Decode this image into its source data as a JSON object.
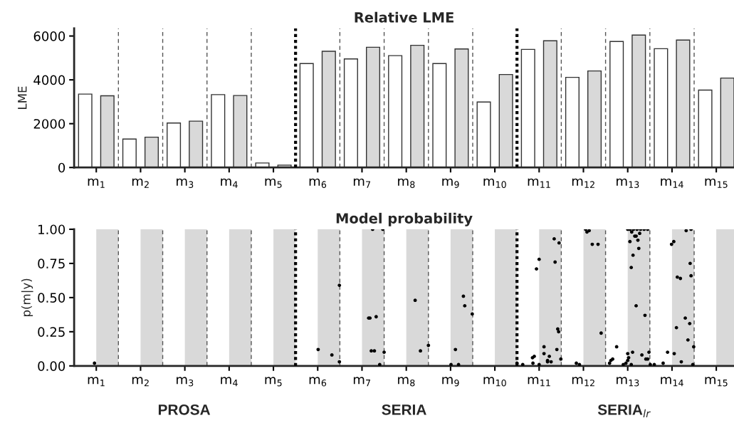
{
  "chart_data": [
    {
      "type": "bar",
      "title": "Relative LME",
      "ylabel": "LME",
      "x": [
        1,
        2,
        3,
        4,
        5,
        6,
        7,
        8,
        9,
        10,
        11,
        12,
        13,
        14,
        15
      ],
      "xlim": [
        0.5,
        15.4
      ],
      "xticks": [
        {
          "value": 1,
          "label": "m$_{1}$"
        },
        {
          "value": 2,
          "label": "m$_{2}$"
        },
        {
          "value": 3,
          "label": "m$_{3}$"
        },
        {
          "value": 4,
          "label": "m$_{4}$"
        },
        {
          "value": 5,
          "label": "m$_{5}$"
        },
        {
          "value": 6,
          "label": "m$_{6}$"
        },
        {
          "value": 7,
          "label": "m$_{7}$"
        },
        {
          "value": 8,
          "label": "m$_{8}$"
        },
        {
          "value": 9,
          "label": "m$_{9}$"
        },
        {
          "value": 10,
          "label": "m$_{10}$"
        },
        {
          "value": 11,
          "label": "m$_{11}$"
        },
        {
          "value": 12,
          "label": "m$_{12}$"
        },
        {
          "value": 13,
          "label": "m$_{13}$"
        },
        {
          "value": 14,
          "label": "m$_{14}$"
        },
        {
          "value": 15,
          "label": "m$_{15}$"
        }
      ],
      "ylim": [
        0,
        6350
      ],
      "yticks": [
        0,
        2000,
        4000,
        6000
      ],
      "grid": false,
      "series": [
        {
          "color": "#ffffff",
          "values": [
            3349,
            1298,
            2029,
            3327,
            207,
            4745,
            4953,
            5105,
            4745,
            2989,
            5389,
            4113,
            5749,
            5422,
            3535
          ]
        },
        {
          "color": "#d9d9d9",
          "values": [
            3273,
            1385,
            2116,
            3284,
            109,
            5302,
            5487,
            5575,
            5411,
            4244,
            5782,
            4407,
            6044,
            5815,
            4080
          ]
        }
      ],
      "ref_lines": [
        {
          "axis": "x",
          "value": 1.5,
          "line_style": "dashed",
          "color": "#555555"
        },
        {
          "axis": "x",
          "value": 2.5,
          "line_style": "dashed",
          "color": "#555555"
        },
        {
          "axis": "x",
          "value": 3.5,
          "line_style": "dashed",
          "color": "#555555"
        },
        {
          "axis": "x",
          "value": 4.5,
          "line_style": "dashed",
          "color": "#555555"
        },
        {
          "axis": "x",
          "value": 5.5,
          "line_style": "dotted",
          "color": "#000000"
        },
        {
          "axis": "x",
          "value": 6.5,
          "line_style": "dashed",
          "color": "#555555"
        },
        {
          "axis": "x",
          "value": 7.5,
          "line_style": "dashed",
          "color": "#555555"
        },
        {
          "axis": "x",
          "value": 8.5,
          "line_style": "dashed",
          "color": "#555555"
        },
        {
          "axis": "x",
          "value": 9.5,
          "line_style": "dashed",
          "color": "#555555"
        },
        {
          "axis": "x",
          "value": 10.5,
          "line_style": "dotted",
          "color": "#000000"
        },
        {
          "axis": "x",
          "value": 11.5,
          "line_style": "dashed",
          "color": "#555555"
        },
        {
          "axis": "x",
          "value": 12.5,
          "line_style": "dashed",
          "color": "#555555"
        },
        {
          "axis": "x",
          "value": 13.5,
          "line_style": "dashed",
          "color": "#555555"
        },
        {
          "axis": "x",
          "value": 14.5,
          "line_style": "dashed",
          "color": "#555555"
        }
      ]
    },
    {
      "type": "scatter",
      "title": "Model probability",
      "ylabel": "p(m|y)",
      "marker": "circle",
      "grid": false,
      "xlim": [
        0.5,
        15.4
      ],
      "xticks": [
        {
          "value": 1,
          "label": "m$_{1}$"
        },
        {
          "value": 2,
          "label": "m$_{2}$"
        },
        {
          "value": 3,
          "label": "m$_{3}$"
        },
        {
          "value": 4,
          "label": "m$_{4}$"
        },
        {
          "value": 5,
          "label": "m$_{5}$"
        },
        {
          "value": 6,
          "label": "m$_{6}$"
        },
        {
          "value": 7,
          "label": "m$_{7}$"
        },
        {
          "value": 8,
          "label": "m$_{8}$"
        },
        {
          "value": 9,
          "label": "m$_{9}$"
        },
        {
          "value": 10,
          "label": "m$_{10}$"
        },
        {
          "value": 11,
          "label": "m$_{11}$"
        },
        {
          "value": 12,
          "label": "m$_{12}$"
        },
        {
          "value": 13,
          "label": "m$_{13}$"
        },
        {
          "value": 14,
          "label": "m$_{14}$"
        },
        {
          "value": 15,
          "label": "m$_{15}$"
        }
      ],
      "ylim": [
        0,
        1
      ],
      "yticks": [
        {
          "value": 0,
          "label": "0.00"
        },
        {
          "value": 0.25,
          "label": "0.25"
        },
        {
          "value": 0.5,
          "label": "0.50"
        },
        {
          "value": 0.75,
          "label": "0.75"
        },
        {
          "value": 1,
          "label": "1.00"
        }
      ],
      "series": [
        {
          "color": "#000000",
          "x": [
            0.96,
            6.01,
            6.32,
            6.49,
            6.49,
            7.15,
            7.24,
            7.47,
            7.18,
            7.32,
            7.21,
            7.28,
            7.5,
            7.4,
            8.2,
            8.32,
            8.5,
            9.11,
            9.01,
            9.18,
            9.29,
            9.32,
            9.49,
            10.5,
            10.63,
            10.85,
            10.89,
            10.86,
            11.0,
            10.94,
            11.0,
            11.11,
            11.11,
            11.19,
            11.19,
            11.23,
            11.27,
            11.34,
            11.36,
            11.4,
            11.42,
            11.44,
            11.45,
            11.49,
            11.84,
            11.91,
            12.05,
            12.08,
            12.13,
            12.2,
            12.33,
            12.4,
            12.59,
            12.62,
            12.66,
            12.75,
            12.9,
            12.96,
            13.0,
            13.02,
            13.0,
            13.08,
            13.11,
            13.0,
            13.05,
            13.13,
            13.21,
            13.29,
            13.37,
            13.45,
            13.09,
            13.16,
            13.19,
            13.27,
            13.05,
            13.23,
            13.25,
            13.12,
            13.08,
            13.19,
            13.39,
            13.32,
            13.41,
            13.45,
            13.48,
            13.51,
            13.6,
            13.8,
            13.9,
            14.05,
            13.99,
            14.04,
            14.1,
            14.12,
            14.19,
            14.21,
            14.3,
            14.32,
            14.43,
            14.4,
            14.41,
            14.36,
            14.43,
            14.49,
            14.47
          ],
          "values": [
            0.02,
            0.12,
            0.08,
            0.59,
            0.03,
            0.35,
            1.0,
            1.0,
            0.35,
            0.36,
            0.11,
            0.11,
            0.1,
            0.01,
            0.48,
            0.11,
            0.15,
            0.12,
            0.01,
            0.01,
            0.51,
            0.44,
            0.38,
            0.02,
            0.01,
            0.06,
            0.07,
            0.02,
            0.01,
            0.71,
            0.78,
            0.14,
            0.09,
            0.04,
            0.03,
            0.07,
            0.03,
            0.93,
            0.76,
            0.12,
            0.27,
            0.25,
            0.9,
            0.05,
            0.02,
            0.01,
            1.0,
            0.98,
            0.99,
            0.89,
            0.89,
            0.24,
            0.02,
            0.04,
            0.05,
            0.14,
            0.01,
            0.02,
            0.09,
            0.06,
            0.04,
            0.01,
            0.1,
            1.0,
            1.0,
            1.0,
            1.0,
            1.0,
            1.0,
            1.0,
            0.98,
            0.95,
            0.95,
            0.97,
            0.91,
            0.92,
            0.86,
            0.81,
            0.72,
            0.44,
            0.37,
            0.08,
            0.05,
            0.05,
            0.1,
            0.01,
            0.01,
            0.02,
            0.1,
            0.09,
            0.89,
            0.91,
            0.28,
            0.65,
            0.64,
            0.03,
            0.35,
            0.99,
            1.0,
            0.31,
            0.75,
            0.19,
            0.66,
            0.14,
            0.01
          ]
        }
      ],
      "bands": [
        {
          "axis": "x",
          "from": 1,
          "to": 1.5,
          "color": "#d9d9d9"
        },
        {
          "axis": "x",
          "from": 2,
          "to": 2.5,
          "color": "#d9d9d9"
        },
        {
          "axis": "x",
          "from": 3,
          "to": 3.5,
          "color": "#d9d9d9"
        },
        {
          "axis": "x",
          "from": 4,
          "to": 4.5,
          "color": "#d9d9d9"
        },
        {
          "axis": "x",
          "from": 5,
          "to": 5.5,
          "color": "#d9d9d9"
        },
        {
          "axis": "x",
          "from": 6,
          "to": 6.5,
          "color": "#d9d9d9"
        },
        {
          "axis": "x",
          "from": 7,
          "to": 7.5,
          "color": "#d9d9d9"
        },
        {
          "axis": "x",
          "from": 8,
          "to": 8.5,
          "color": "#d9d9d9"
        },
        {
          "axis": "x",
          "from": 9,
          "to": 9.5,
          "color": "#d9d9d9"
        },
        {
          "axis": "x",
          "from": 10,
          "to": 10.5,
          "color": "#d9d9d9"
        },
        {
          "axis": "x",
          "from": 11,
          "to": 11.5,
          "color": "#d9d9d9"
        },
        {
          "axis": "x",
          "from": 12,
          "to": 12.5,
          "color": "#d9d9d9"
        },
        {
          "axis": "x",
          "from": 13,
          "to": 13.5,
          "color": "#d9d9d9"
        },
        {
          "axis": "x",
          "from": 14,
          "to": 14.5,
          "color": "#d9d9d9"
        },
        {
          "axis": "x",
          "from": 15,
          "to": 15.5,
          "color": "#d9d9d9"
        }
      ],
      "ref_lines": [
        {
          "axis": "x",
          "value": 1.5,
          "line_style": "dashed",
          "color": "#555555"
        },
        {
          "axis": "x",
          "value": 2.5,
          "line_style": "dashed",
          "color": "#555555"
        },
        {
          "axis": "x",
          "value": 3.5,
          "line_style": "dashed",
          "color": "#555555"
        },
        {
          "axis": "x",
          "value": 4.5,
          "line_style": "dashed",
          "color": "#555555"
        },
        {
          "axis": "x",
          "value": 5.5,
          "line_style": "dotted",
          "color": "#000000"
        },
        {
          "axis": "x",
          "value": 6.5,
          "line_style": "dashed",
          "color": "#555555"
        },
        {
          "axis": "x",
          "value": 7.5,
          "line_style": "dashed",
          "color": "#555555"
        },
        {
          "axis": "x",
          "value": 8.5,
          "line_style": "dashed",
          "color": "#555555"
        },
        {
          "axis": "x",
          "value": 9.5,
          "line_style": "dashed",
          "color": "#555555"
        },
        {
          "axis": "x",
          "value": 10.5,
          "line_style": "dotted",
          "color": "#000000"
        },
        {
          "axis": "x",
          "value": 11.5,
          "line_style": "dashed",
          "color": "#555555"
        },
        {
          "axis": "x",
          "value": 12.5,
          "line_style": "dashed",
          "color": "#555555"
        },
        {
          "axis": "x",
          "value": 13.5,
          "line_style": "dashed",
          "color": "#555555"
        },
        {
          "axis": "x",
          "value": 14.5,
          "line_style": "dashed",
          "color": "#555555"
        }
      ],
      "annotations": [
        "PROSA",
        "SERIA",
        "SERIA$_{lr}$"
      ]
    }
  ]
}
